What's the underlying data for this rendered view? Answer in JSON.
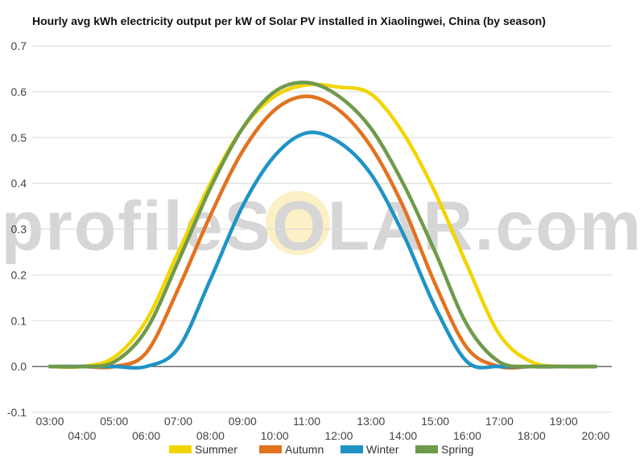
{
  "chart_data": {
    "type": "line",
    "title": "Hourly avg kWh electricity output per kW of Solar PV installed in Xiaolingwei, China (by season)",
    "xlabel": "",
    "ylabel": "",
    "x": [
      "03:00",
      "04:00",
      "05:00",
      "06:00",
      "07:00",
      "08:00",
      "09:00",
      "10:00",
      "11:00",
      "12:00",
      "13:00",
      "14:00",
      "15:00",
      "16:00",
      "17:00",
      "18:00",
      "19:00",
      "20:00"
    ],
    "ylim": [
      -0.1,
      0.7
    ],
    "yticks": [
      "-0.1",
      "0.0",
      "0.1",
      "0.2",
      "0.3",
      "0.4",
      "0.5",
      "0.6",
      "0.7"
    ],
    "grid": true,
    "legend_position": "bottom",
    "series": [
      {
        "name": "Summer",
        "color": "#f2d500",
        "values": [
          0.0,
          0.0,
          0.02,
          0.1,
          0.25,
          0.4,
          0.52,
          0.59,
          0.615,
          0.61,
          0.595,
          0.51,
          0.38,
          0.22,
          0.07,
          0.01,
          0.0,
          0.0
        ]
      },
      {
        "name": "Autumn",
        "color": "#e3721f",
        "values": [
          0.0,
          0.0,
          0.0,
          0.03,
          0.17,
          0.33,
          0.47,
          0.56,
          0.59,
          0.56,
          0.48,
          0.35,
          0.18,
          0.04,
          0.0,
          0.0,
          0.0,
          0.0
        ]
      },
      {
        "name": "Winter",
        "color": "#1f93c6",
        "values": [
          0.0,
          0.0,
          0.0,
          0.0,
          0.04,
          0.19,
          0.35,
          0.46,
          0.51,
          0.49,
          0.42,
          0.29,
          0.13,
          0.01,
          0.0,
          0.0,
          0.0,
          0.0
        ]
      },
      {
        "name": "Spring",
        "color": "#6f9a4c",
        "values": [
          0.0,
          0.0,
          0.01,
          0.08,
          0.23,
          0.39,
          0.52,
          0.6,
          0.62,
          0.59,
          0.52,
          0.4,
          0.25,
          0.09,
          0.01,
          0.0,
          0.0,
          0.0
        ]
      }
    ],
    "watermark": "profileSOLAR.com"
  }
}
